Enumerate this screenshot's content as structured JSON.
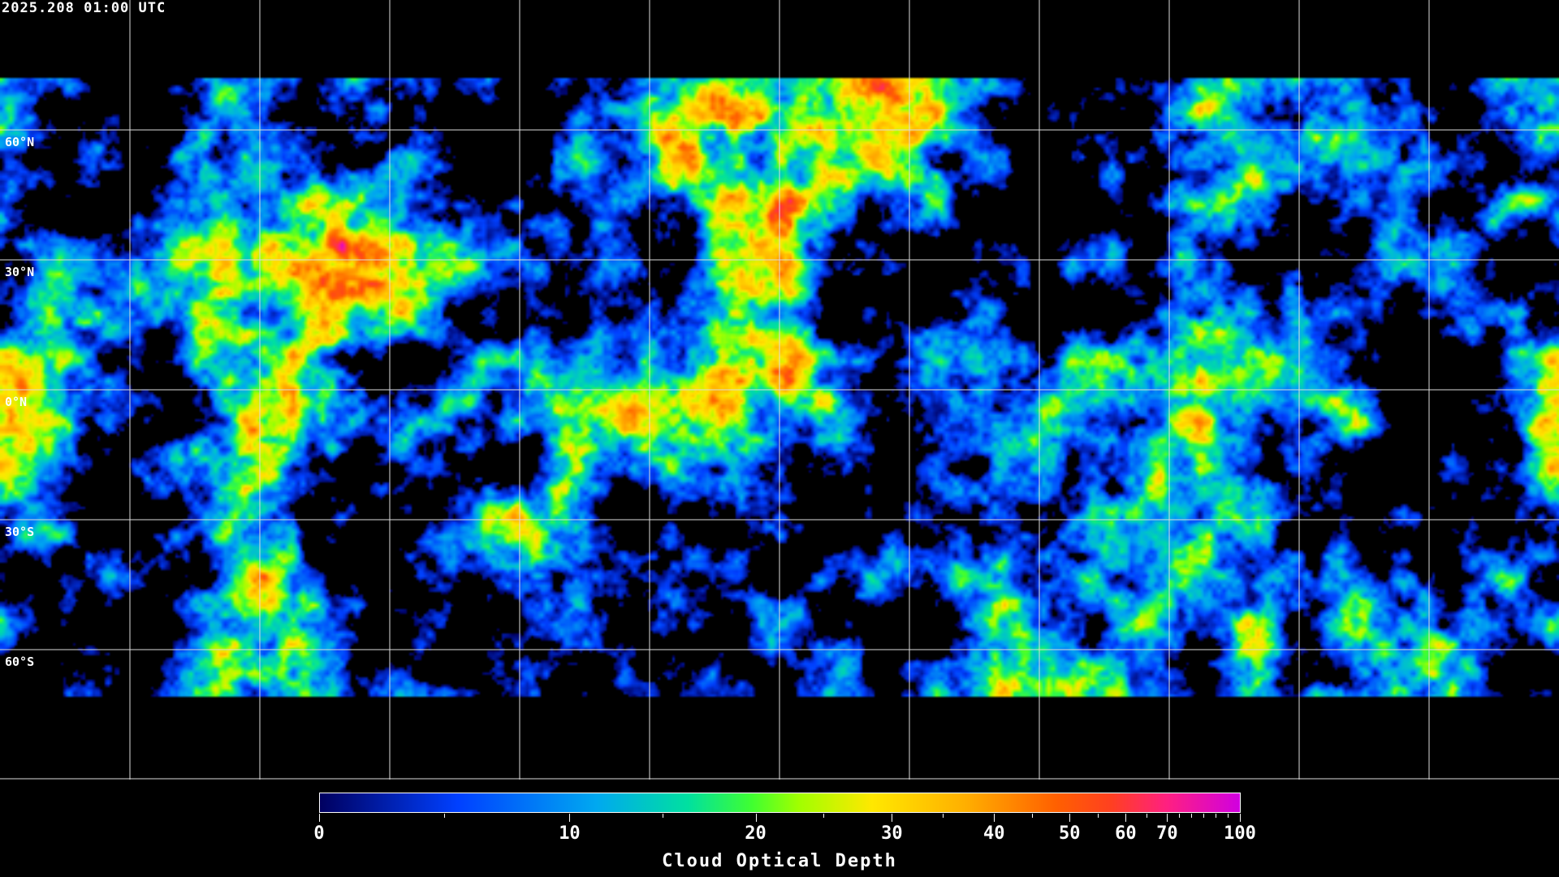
{
  "title": "2025.208 01:00 UTC",
  "map": {
    "projection": "equirectangular",
    "lon_range": [
      -180,
      180
    ],
    "lat_range": [
      90,
      -90
    ],
    "gridline_spacing_deg": 30,
    "lat_labels": [
      "60°N",
      "30°N",
      "0°N",
      "30°S",
      "60°S"
    ],
    "lat_label_values": [
      60,
      30,
      0,
      -30,
      -60
    ],
    "no_data_color": "#000000",
    "coastline_color": "#ffffff",
    "grid_color": "#ffffff"
  },
  "colorbar": {
    "title": "Cloud Optical Depth",
    "tick_labels": [
      "0",
      "10",
      "20",
      "30",
      "40",
      "50",
      "60",
      "70",
      "100"
    ],
    "tick_values": [
      0,
      10,
      20,
      30,
      40,
      50,
      60,
      70,
      100
    ],
    "minor_tick_values": [
      5,
      15,
      25,
      35,
      45,
      55,
      65,
      75,
      80,
      85,
      90,
      95
    ],
    "range": [
      0,
      100
    ],
    "colors": [
      "#000060",
      "#0040ff",
      "#00a8f0",
      "#00e0a0",
      "#40ff30",
      "#a0ff00",
      "#ffe800",
      "#ffb000",
      "#ff6000",
      "#ff4020",
      "#ff2080",
      "#d000e0"
    ]
  }
}
